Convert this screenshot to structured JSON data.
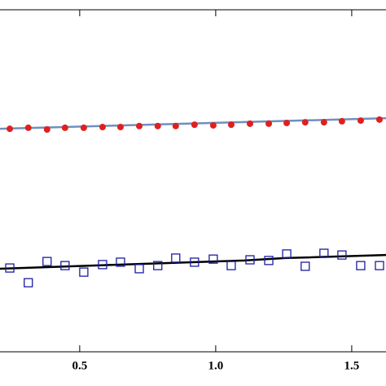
{
  "chart_data": {
    "type": "scatter",
    "xlim": [
      0.207,
      1.626
    ],
    "ylim": [
      0,
      100
    ],
    "xticks": [
      0.5,
      {
        "value": 1.0,
        "label": "1.0"
      },
      1.5
    ],
    "series": [
      {
        "style": "line",
        "color": "#6f8fbf",
        "x": [
          0.207,
          1.626
        ],
        "values": [
          65.2,
          68.3
        ]
      },
      {
        "style": "dot",
        "color": "#e0201e",
        "x": [
          0.243,
          0.311,
          0.38,
          0.446,
          0.515,
          0.584,
          0.65,
          0.719,
          0.787,
          0.853,
          0.922,
          0.991,
          1.057,
          1.126,
          1.195,
          1.261,
          1.329,
          1.398,
          1.464,
          1.533,
          1.602
        ],
        "values": [
          65.2,
          65.5,
          65.0,
          65.5,
          65.5,
          65.7,
          65.7,
          66.0,
          66.0,
          66.0,
          66.4,
          66.2,
          66.4,
          66.7,
          66.7,
          66.9,
          67.1,
          67.1,
          67.4,
          67.6,
          67.9
        ]
      },
      {
        "style": "line",
        "color": "#000000",
        "x": [
          0.207,
          0.656,
          1.105,
          1.254,
          1.626
        ],
        "values": [
          24.3,
          25.5,
          26.7,
          27.4,
          28.3
        ]
      },
      {
        "style": "square",
        "color": "#1c1ca0",
        "x": [
          0.243,
          0.311,
          0.38,
          0.446,
          0.515,
          0.584,
          0.65,
          0.719,
          0.787,
          0.853,
          0.922,
          0.991,
          1.057,
          1.126,
          1.195,
          1.261,
          1.329,
          1.398,
          1.464,
          1.533,
          1.602
        ],
        "values": [
          24.5,
          20.2,
          26.4,
          25.2,
          23.3,
          25.5,
          26.2,
          24.3,
          25.2,
          27.4,
          26.2,
          27.1,
          25.2,
          26.9,
          26.7,
          28.6,
          25.0,
          28.8,
          28.3,
          25.2,
          25.2
        ]
      }
    ]
  }
}
